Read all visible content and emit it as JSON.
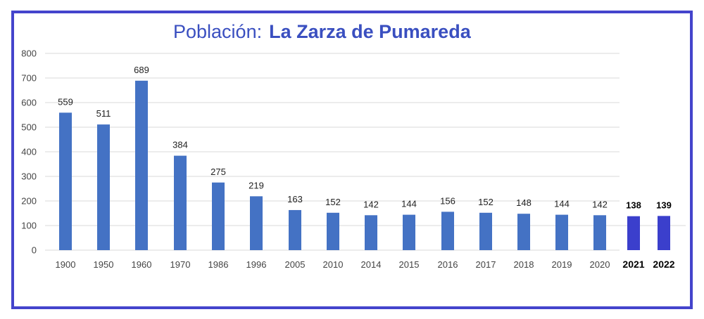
{
  "title": {
    "prefix": "Población:",
    "place": "La Zarza de Pumareda"
  },
  "colors": {
    "frame": "#4444cc",
    "title": "#3a4fc0",
    "bar": "#4472c4",
    "bar_highlight": "#3b3fcc",
    "grid": "#d9d9d9"
  },
  "chart_data": {
    "type": "bar",
    "title": "Población:  La Zarza de Pumareda",
    "xlabel": "",
    "ylabel": "",
    "ylim": [
      0,
      800
    ],
    "yticks": [
      0,
      100,
      200,
      300,
      400,
      500,
      600,
      700,
      800
    ],
    "grid": true,
    "categories": [
      "1900",
      "1950",
      "1960",
      "1970",
      "1986",
      "1996",
      "2005",
      "2010",
      "2014",
      "2015",
      "2016",
      "2017",
      "2018",
      "2019",
      "2020",
      "2021",
      "2022"
    ],
    "values": [
      559,
      511,
      689,
      384,
      275,
      219,
      163,
      152,
      142,
      144,
      156,
      152,
      148,
      144,
      142,
      138,
      139
    ],
    "highlighted_categories": [
      "2021",
      "2022"
    ]
  }
}
